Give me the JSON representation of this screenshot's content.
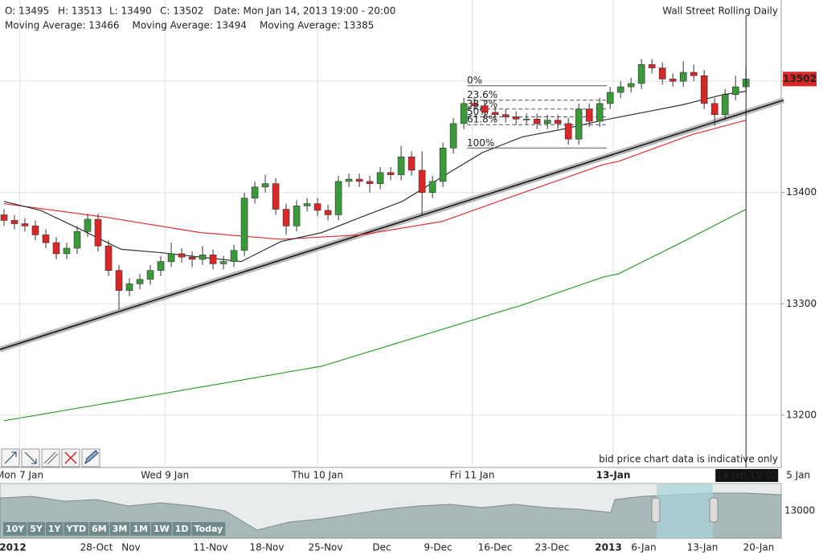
{
  "header": {
    "open": "O: 13495",
    "high": "H: 13513",
    "low": "L: 13490",
    "close": "C: 13502",
    "date": "Date: Mon Jan 14, 2013 19:00 - 20:00"
  },
  "chart_data": {
    "type": "candlestick",
    "title": "Wall Street Rolling Daily",
    "note": "bid price chart data is indicative only",
    "open": [
      13380,
      13375,
      13372,
      13370,
      13362,
      13355,
      13345,
      13350,
      13365,
      13376,
      13352,
      13330,
      13312,
      13318,
      13322,
      13330,
      13338,
      13345,
      13342,
      13340,
      13344,
      13336,
      13338,
      13348,
      13395,
      13405,
      13408,
      13385,
      13370,
      13388,
      13390,
      13384,
      13380,
      13410,
      13412,
      13410,
      13408,
      13418,
      13416,
      13432,
      13420,
      13400,
      13410,
      13440,
      13462,
      13480,
      13478,
      13472,
      13470,
      13468,
      13466,
      13466,
      13462,
      13465,
      13462,
      13448,
      13475,
      13464,
      13480,
      13490,
      13495,
      13498,
      13515,
      13512,
      13502,
      13500,
      13508,
      13505,
      13480,
      13470,
      13488,
      13495
    ],
    "high": [
      13385,
      13380,
      13377,
      13375,
      13367,
      13360,
      13355,
      13370,
      13381,
      13381,
      13357,
      13335,
      13323,
      13327,
      13335,
      13343,
      13355,
      13350,
      13347,
      13352,
      13349,
      13343,
      13353,
      13400,
      13410,
      13416,
      13413,
      13390,
      13393,
      13395,
      13395,
      13389,
      13415,
      13417,
      13417,
      13415,
      13423,
      13423,
      13442,
      13437,
      13437,
      13415,
      13445,
      13467,
      13485,
      13485,
      13483,
      13477,
      13475,
      13473,
      13471,
      13471,
      13470,
      13470,
      13467,
      13480,
      13480,
      13485,
      13495,
      13500,
      13503,
      13520,
      13520,
      13517,
      13507,
      13518,
      13515,
      13510,
      13485,
      13493,
      13505,
      13513
    ],
    "low": [
      13370,
      13367,
      13365,
      13357,
      13350,
      13340,
      13340,
      13345,
      13360,
      13347,
      13325,
      13295,
      13307,
      13313,
      13317,
      13325,
      13333,
      13337,
      13333,
      13335,
      13331,
      13331,
      13333,
      13343,
      13390,
      13400,
      13380,
      13362,
      13365,
      13383,
      13379,
      13375,
      13375,
      13405,
      13405,
      13400,
      13403,
      13411,
      13411,
      13415,
      13380,
      13395,
      13405,
      13435,
      13457,
      13473,
      13467,
      13465,
      13463,
      13461,
      13461,
      13457,
      13457,
      13457,
      13443,
      13443,
      13459,
      13459,
      13475,
      13485,
      13490,
      13493,
      13507,
      13497,
      13495,
      13495,
      13500,
      13475,
      13460,
      13465,
      13483,
      13490
    ],
    "close": [
      13375,
      13372,
      13370,
      13362,
      13355,
      13345,
      13350,
      13365,
      13376,
      13352,
      13330,
      13312,
      13318,
      13322,
      13330,
      13338,
      13345,
      13342,
      13340,
      13344,
      13336,
      13338,
      13348,
      13395,
      13405,
      13408,
      13385,
      13370,
      13388,
      13390,
      13384,
      13380,
      13410,
      13412,
      13410,
      13408,
      13418,
      13416,
      13432,
      13420,
      13400,
      13410,
      13440,
      13462,
      13480,
      13478,
      13472,
      13470,
      13468,
      13466,
      13466,
      13462,
      13465,
      13462,
      13448,
      13475,
      13464,
      13480,
      13490,
      13495,
      13498,
      13515,
      13512,
      13502,
      13500,
      13508,
      13505,
      13480,
      13470,
      13488,
      13495,
      13502
    ],
    "up_color": "#3a9a3a",
    "down_color": "#d92626",
    "xlim": [
      -0.385,
      74.6
    ],
    "ylim": [
      13153,
      13573
    ],
    "yticks": [
      13200,
      13300,
      13400,
      13500
    ],
    "xticks": [
      {
        "value": 1.5,
        "label": "Mon 7 Jan"
      },
      {
        "value": 15.4,
        "label": "Wed 9 Jan"
      },
      {
        "value": 30,
        "label": "Thu 10 Jan"
      },
      {
        "value": 44.8,
        "label": "Fri 11 Jan"
      },
      {
        "value": 58.3,
        "label": "13-Jan"
      },
      {
        "value": 76,
        "label": "5 Jan"
      }
    ],
    "grid": true,
    "last_price": 13502,
    "cursor": {
      "x": 71,
      "label": "14 Jan 19:00"
    },
    "moving_averages": [
      {
        "name": "Moving Average: 13466",
        "color": "#e03030",
        "x": [
          0,
          9.6,
          18.8,
          26.5,
          34.2,
          41.9,
          47.3,
          57.3,
          58.8,
          65.8,
          71
        ],
        "values": [
          13390,
          13378,
          13364,
          13358,
          13362,
          13374,
          13392,
          13425,
          13428,
          13452,
          13465
        ]
      },
      {
        "name": "Moving Average: 13494",
        "color": "#333333",
        "x": [
          0,
          3.5,
          7.3,
          11.2,
          15,
          18.8,
          22.7,
          26.5,
          30.4,
          34.2,
          38.1,
          41.9,
          45.8,
          49.6,
          53.5,
          57.3,
          61.2,
          65,
          68.8,
          71
        ],
        "values": [
          13392,
          13384,
          13367,
          13349,
          13346,
          13342,
          13338,
          13356,
          13364,
          13378,
          13392,
          13414,
          13436,
          13450,
          13457,
          13465,
          13472,
          13479,
          13488,
          13491
        ]
      },
      {
        "name": "Moving Average: 13385",
        "color": "#2ca02c",
        "x": [
          0,
          15,
          30.4,
          41.9,
          49.6,
          57.3,
          58.8,
          65,
          71
        ],
        "values": [
          13195,
          13219,
          13244,
          13277,
          13299,
          13324,
          13327,
          13356,
          13385
        ]
      }
    ],
    "trendline": {
      "x": [
        -0.4,
        74.6
      ],
      "values": [
        13259,
        13483
      ]
    },
    "fibonacci": {
      "x": [
        44.3,
        57.7
      ],
      "levels": [
        {
          "value": 13496,
          "label": "0%"
        },
        {
          "value": 13483,
          "label": "23.6%"
        },
        {
          "value": 13475,
          "label": "38.2%"
        },
        {
          "value": 13468,
          "label": "50%"
        },
        {
          "value": 13461,
          "label": "61.8%"
        },
        {
          "value": 13440,
          "label": "100%"
        }
      ]
    }
  },
  "navigator": {
    "dates": [
      "2012",
      "28-Oct",
      "Nov",
      "11-Nov",
      "18-Nov",
      "25-Nov",
      "Dec",
      "9-Dec",
      "16-Dec",
      "23-Dec",
      "2013",
      "6-Jan",
      "13-Jan",
      "20-Jan"
    ],
    "buttons": [
      "10Y",
      "5Y",
      "1Y",
      "YTD",
      "6M",
      "3M",
      "1M",
      "1W",
      "1D",
      "Today"
    ],
    "tick": "13000"
  }
}
